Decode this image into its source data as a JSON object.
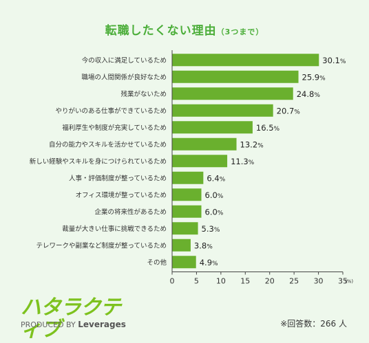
{
  "title": "転職したくない理由",
  "subtitle": "（3つまで）",
  "chart_data": {
    "type": "bar",
    "orientation": "horizontal",
    "categories": [
      "今の収入に満足しているため",
      "職場の人間関係が良好なため",
      "残業がないため",
      "やりがいのある仕事ができているため",
      "福利厚生や制度が充実しているため",
      "自分の能力やスキルを活かせているため",
      "新しい経験やスキルを身につけられているため",
      "人事・評価制度が整っているため",
      "オフィス環境が整っているため",
      "企業の将来性があるため",
      "裁量が大きい仕事に挑戦できるため",
      "テレワークや副業など制度が整っているため",
      "その他"
    ],
    "values": [
      30.1,
      25.9,
      24.8,
      20.7,
      16.5,
      13.2,
      11.3,
      6.4,
      6.0,
      6.0,
      5.3,
      3.8,
      4.9
    ],
    "xlim": [
      0,
      35
    ],
    "xticks": [
      0,
      5,
      10,
      15,
      20,
      25,
      30,
      35
    ],
    "x_unit": "(%)",
    "value_suffix": "%",
    "bar_color": "#6ab02e",
    "grid": false
  },
  "logo": {
    "mark": "ハタラクティブ",
    "byline_prefix": "PRODUCED BY",
    "byline_brand": "Leverages"
  },
  "footnote": "※回答数：266 人"
}
